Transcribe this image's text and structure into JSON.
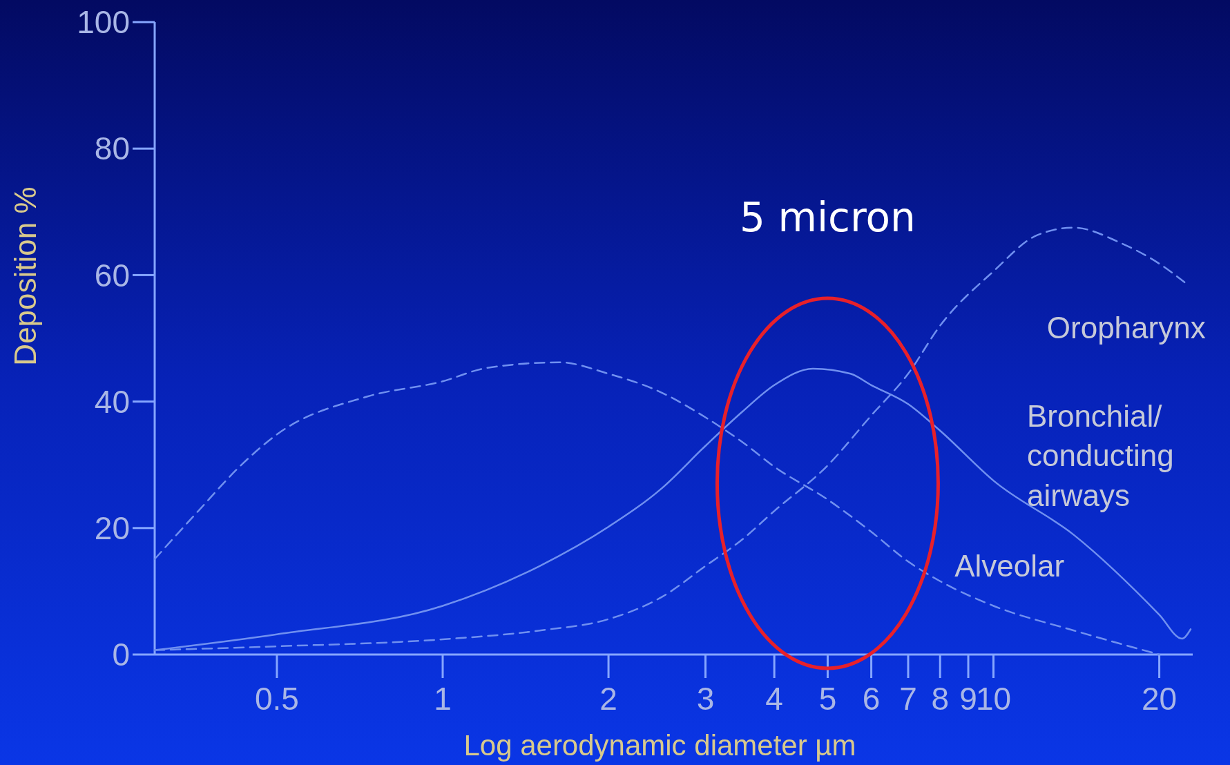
{
  "chart_data": {
    "type": "line",
    "xlabel": "Log aerodynamic diameter µm",
    "ylabel": "Deposition %",
    "log": "x",
    "xlim": [
      0.3,
      23
    ],
    "ylim": [
      0,
      100
    ],
    "xticks": [
      0.5,
      1,
      2,
      3,
      4,
      5,
      6,
      7,
      8,
      9,
      10,
      20
    ],
    "yticks": [
      0,
      20,
      40,
      60,
      80,
      100
    ],
    "grid": false,
    "marker": "none",
    "series": [
      {
        "name": "Alveolar",
        "color": "#7090f0",
        "line_style": "dashed",
        "x": [
          0.3,
          0.36,
          0.43,
          0.5,
          0.73,
          1,
          1.2,
          1.63,
          2,
          2.5,
          3,
          3.5,
          4,
          5,
          6,
          7,
          8,
          10,
          14,
          20
        ],
        "values": [
          15.1,
          22.7,
          29.9,
          34.8,
          40.8,
          43.2,
          45.3,
          46.2,
          44.4,
          41.4,
          37.5,
          33.6,
          29.7,
          24.5,
          19.4,
          14.7,
          11.6,
          7.7,
          3.8,
          0
        ]
      },
      {
        "name": "Bronchial/\nconducting\nairways",
        "color": "#7090f0",
        "line_style": "solid",
        "x": [
          0.3,
          0.5,
          1,
          1.5,
          2,
          2.5,
          3,
          3.5,
          4,
          4.7,
          5.5,
          6,
          7,
          8,
          10,
          14,
          20,
          22,
          22.8
        ],
        "values": [
          0.7,
          3.2,
          7.7,
          14,
          20.2,
          26.3,
          33,
          38.4,
          42.6,
          45.2,
          44.4,
          42.6,
          39.6,
          35.4,
          27.5,
          18.9,
          6.3,
          2.5,
          4
        ]
      },
      {
        "name": "Oropharynx",
        "color": "#7090f0",
        "line_style": "dashed",
        "x": [
          0.3,
          0.5,
          1,
          1.5,
          2,
          2.5,
          3,
          3.5,
          4,
          5,
          6,
          7,
          8,
          10,
          12,
          14,
          17,
          20,
          22.5
        ],
        "values": [
          0.7,
          1.3,
          2.4,
          3.8,
          5.6,
          9.1,
          14,
          18.2,
          22.7,
          29.9,
          37.8,
          44.4,
          52,
          60.6,
          66.3,
          67.5,
          65.1,
          61.8,
          58.5
        ]
      }
    ],
    "annotations": [
      "5 micron"
    ]
  }
}
